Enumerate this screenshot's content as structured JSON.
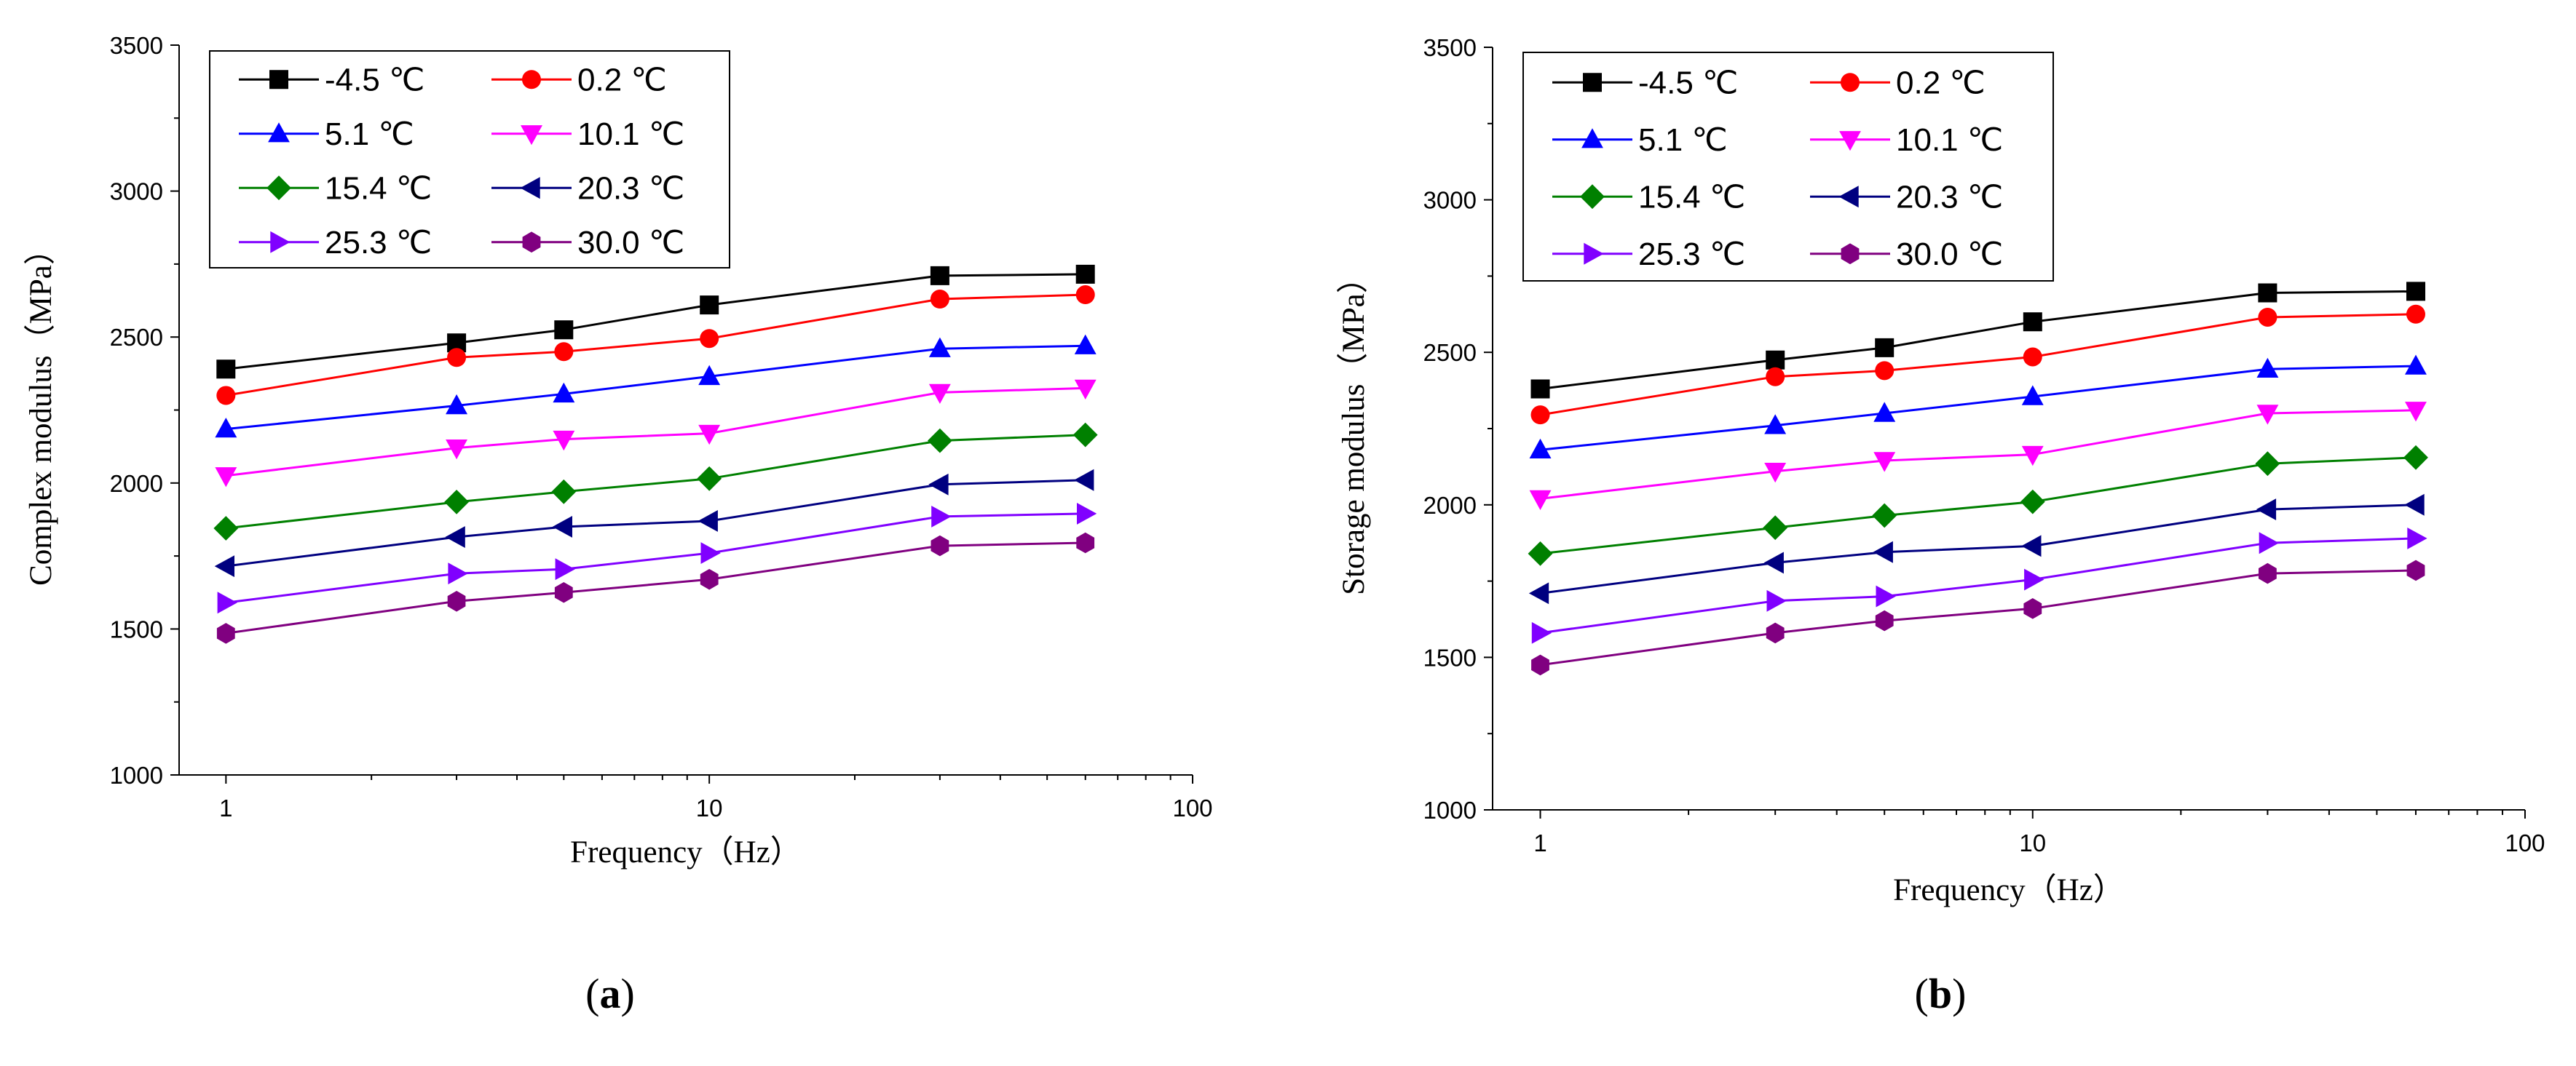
{
  "panels": [
    {
      "caption_letter": "a",
      "chart_data": {
        "type": "line",
        "title": "",
        "xscale": "log",
        "xlabel": "Frequency（Hz）",
        "ylabel": "Complex modulus（MPa）",
        "xlim": [
          0.8,
          100
        ],
        "ylim": [
          1000,
          3500
        ],
        "xticks": [
          1,
          10,
          100
        ],
        "yticks": [
          1000,
          1500,
          2000,
          2500,
          3000,
          3500
        ],
        "x": [
          1,
          3,
          5,
          10,
          30,
          60
        ],
        "legend_position": "top-left",
        "series": [
          {
            "name": "-4.5 ℃",
            "color": "#000000",
            "marker": "square",
            "values": [
              2390,
              2480,
              2525,
              2610,
              2710,
              2715
            ]
          },
          {
            "name": "0.2 ℃",
            "color": "#ff0000",
            "marker": "circle",
            "values": [
              2300,
              2430,
              2450,
              2495,
              2630,
              2645
            ]
          },
          {
            "name": "5.1 ℃",
            "color": "#0000ff",
            "marker": "triangle-up",
            "values": [
              2185,
              2265,
              2305,
              2365,
              2460,
              2470
            ]
          },
          {
            "name": "10.1 ℃",
            "color": "#ff00ff",
            "marker": "triangle-down",
            "values": [
              2025,
              2120,
              2150,
              2170,
              2310,
              2325
            ]
          },
          {
            "name": "15.4 ℃",
            "color": "#008000",
            "marker": "diamond",
            "values": [
              1845,
              1935,
              1970,
              2015,
              2145,
              2165
            ]
          },
          {
            "name": "20.3 ℃",
            "color": "#000080",
            "marker": "triangle-left",
            "values": [
              1715,
              1815,
              1850,
              1870,
              1995,
              2010
            ]
          },
          {
            "name": "25.3 ℃",
            "color": "#8000ff",
            "marker": "triangle-right",
            "values": [
              1590,
              1690,
              1705,
              1760,
              1885,
              1895
            ]
          },
          {
            "name": "30.0 ℃",
            "color": "#800080",
            "marker": "hexagon",
            "values": [
              1485,
              1595,
              1625,
              1670,
              1785,
              1795
            ]
          }
        ]
      }
    },
    {
      "caption_letter": "b",
      "chart_data": {
        "type": "line",
        "title": "",
        "xscale": "log",
        "xlabel": "Frequency（Hz）",
        "ylabel": "Storage modulus（MPa）",
        "xlim": [
          0.8,
          100
        ],
        "ylim": [
          1000,
          3500
        ],
        "xticks": [
          1,
          10,
          100
        ],
        "yticks": [
          1000,
          1500,
          2000,
          2500,
          3000,
          3500
        ],
        "x": [
          1,
          3,
          5,
          10,
          30,
          60
        ],
        "legend_position": "top-left",
        "series": [
          {
            "name": "-4.5 ℃",
            "color": "#000000",
            "marker": "square",
            "values": [
              2380,
              2475,
              2515,
              2600,
              2695,
              2700
            ]
          },
          {
            "name": "0.2 ℃",
            "color": "#ff0000",
            "marker": "circle",
            "values": [
              2295,
              2420,
              2440,
              2485,
              2615,
              2625
            ]
          },
          {
            "name": "5.1 ℃",
            "color": "#0000ff",
            "marker": "triangle-up",
            "values": [
              2180,
              2260,
              2300,
              2355,
              2445,
              2455
            ]
          },
          {
            "name": "10.1 ℃",
            "color": "#ff00ff",
            "marker": "triangle-down",
            "values": [
              2020,
              2110,
              2145,
              2165,
              2300,
              2310
            ]
          },
          {
            "name": "15.4 ℃",
            "color": "#008000",
            "marker": "diamond",
            "values": [
              1840,
              1925,
              1965,
              2010,
              2135,
              2155
            ]
          },
          {
            "name": "20.3 ℃",
            "color": "#000080",
            "marker": "triangle-left",
            "values": [
              1710,
              1810,
              1845,
              1865,
              1985,
              2000
            ]
          },
          {
            "name": "25.3 ℃",
            "color": "#8000ff",
            "marker": "triangle-right",
            "values": [
              1580,
              1685,
              1700,
              1755,
              1875,
              1890
            ]
          },
          {
            "name": "30.0 ℃",
            "color": "#800080",
            "marker": "hexagon",
            "values": [
              1475,
              1580,
              1620,
              1660,
              1775,
              1785
            ]
          }
        ]
      }
    }
  ]
}
